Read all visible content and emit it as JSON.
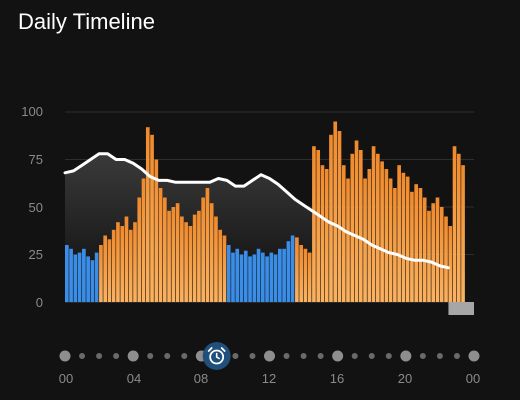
{
  "title": "Daily Timeline",
  "colors": {
    "background": "#121212",
    "energy_orange": "#f08a2c",
    "energy_orange_light": "#fbb260",
    "sleep_blue": "#3b8ee8",
    "line_white": "#ffffff",
    "grid": "#2e2e2e",
    "label_gray": "#8a8a8a",
    "unknown_gray": "#a6a6a6",
    "current_marker": "#1f4f7a"
  },
  "timeline": {
    "marker_icon": "alarm-clock-icon",
    "marker_time_hour": 8.9,
    "time_labels": [
      "00",
      "04",
      "08",
      "12",
      "16",
      "20",
      "00"
    ]
  },
  "chart_data": {
    "type": "bar",
    "title": "Daily Timeline",
    "xlabel": "",
    "ylabel": "",
    "xlim": [
      0,
      24
    ],
    "ylim": [
      0,
      100
    ],
    "yticks": [
      "100",
      "75",
      "50",
      "25",
      "0"
    ],
    "grid": true,
    "legend": "none",
    "series": [
      {
        "type": "area",
        "x": [
          0,
          0.5,
          1,
          1.5,
          2,
          2.5,
          3,
          3.5,
          4,
          4.5,
          5,
          5.5,
          6,
          6.5,
          7,
          7.5,
          8,
          8.5,
          9,
          9.5,
          10,
          10.5,
          11,
          11.5,
          12,
          12.5,
          13,
          13.5,
          14,
          14.5,
          15,
          15.5,
          16,
          16.5,
          17,
          17.5,
          18,
          18.5,
          19,
          19.5,
          20,
          20.5,
          21,
          21.5,
          22,
          22.5
        ],
        "values": [
          68,
          69,
          72,
          75,
          78,
          78,
          75,
          75,
          73,
          70,
          66,
          64,
          64,
          63,
          63,
          63,
          63,
          63,
          65,
          64,
          61,
          61,
          64,
          67,
          65,
          62,
          58,
          54,
          51,
          48,
          45,
          42,
          40,
          37,
          35,
          33,
          30,
          28,
          26,
          25,
          23,
          22,
          22,
          21,
          19,
          18
        ]
      },
      {
        "type": "bar",
        "start": 0,
        "bin_hours": 0.25,
        "values": [
          30,
          28,
          25,
          26,
          28,
          24,
          22,
          26,
          30,
          35,
          33,
          38,
          42,
          40,
          45,
          38,
          42,
          55,
          65,
          92,
          88,
          75,
          60,
          55,
          48,
          50,
          52,
          45,
          42,
          40,
          46,
          48,
          55,
          60,
          52,
          45,
          38,
          35,
          30,
          26,
          28,
          25,
          27,
          24,
          25,
          28,
          26,
          24,
          26,
          25,
          28,
          28,
          32,
          35,
          34,
          30,
          28,
          26,
          82,
          80,
          72,
          70,
          88,
          95,
          90,
          72,
          65,
          78,
          85,
          80,
          65,
          70,
          82,
          78,
          74,
          70,
          65,
          60,
          72,
          68,
          66,
          58,
          62,
          60,
          55,
          48,
          52,
          55,
          50,
          45,
          40,
          82,
          78,
          72
        ],
        "kind": [
          "s",
          "s",
          "s",
          "s",
          "s",
          "s",
          "s",
          "s",
          "a",
          "a",
          "a",
          "a",
          "a",
          "a",
          "a",
          "a",
          "a",
          "a",
          "a",
          "a",
          "a",
          "a",
          "a",
          "a",
          "a",
          "a",
          "a",
          "a",
          "a",
          "a",
          "a",
          "a",
          "a",
          "a",
          "a",
          "a",
          "a",
          "a",
          "s",
          "s",
          "s",
          "s",
          "s",
          "s",
          "s",
          "s",
          "s",
          "s",
          "s",
          "s",
          "s",
          "s",
          "s",
          "s",
          "a",
          "a",
          "a",
          "a",
          "a",
          "a",
          "a",
          "a",
          "a",
          "a",
          "a",
          "a",
          "a",
          "a",
          "a",
          "a",
          "a",
          "a",
          "a",
          "a",
          "a",
          "a",
          "a",
          "a",
          "a",
          "a",
          "a",
          "a",
          "a",
          "a",
          "a",
          "a",
          "a",
          "a",
          "a",
          "a",
          "a",
          "a",
          "a",
          "a"
        ]
      }
    ],
    "unknown_segments": [
      [
        22.5,
        24
      ]
    ]
  }
}
